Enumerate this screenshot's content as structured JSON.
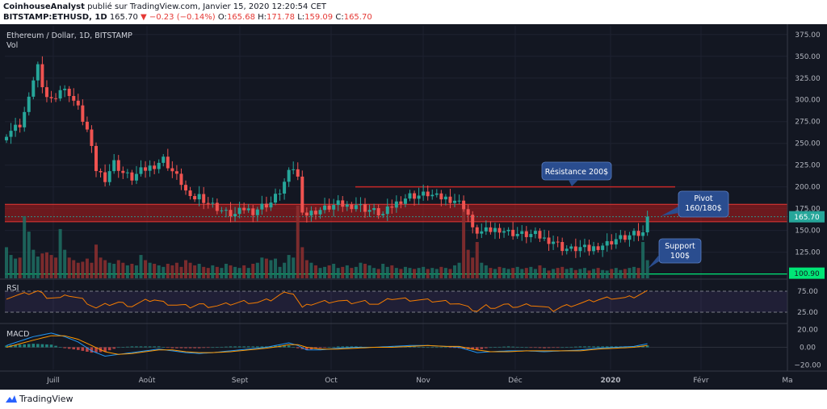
{
  "header": {
    "author": "CoinhouseAnalyst",
    "published": "publié sur TradingView.com, Janvier 15, 2020 12:20:54 CET",
    "symbol": "BITSTAMP:ETHUSD, 1D",
    "last": "165.70",
    "change": "−0.23 (−0.14%)",
    "o_label": "O:",
    "o": "165.68",
    "h_label": "H:",
    "h": "171.78",
    "l_label": "L:",
    "l": "159.09",
    "c_label": "C:",
    "c": "165.70"
  },
  "legend": {
    "title": "Ethereum / Dollar, 1D, BITSTAMP",
    "vol": "Vol",
    "rsi": "RSI",
    "macd": "MACD"
  },
  "annotations": {
    "resistance": "Résistance 200$",
    "pivot_line1": "Pivot",
    "pivot_line2": "160/180$",
    "support_line1": "Support",
    "support_line2": "100$"
  },
  "price_tags": {
    "last": "165.70",
    "support": "100.90"
  },
  "footer": {
    "brand": "TradingView"
  },
  "colors": {
    "up": "#26a69a",
    "down": "#ef5350",
    "rsi": "#f57c00",
    "macd_line": "#2196f3",
    "signal": "#ff9800",
    "support": "#00e676",
    "zone": "#b71c1c",
    "pivot_box": "#2a4d8f"
  },
  "chart_data": {
    "type": "candlestick",
    "x_labels": [
      "Juill",
      "Août",
      "Sept",
      "Oct",
      "Nov",
      "Déc",
      "2020",
      "Févr",
      "Ma"
    ],
    "y_ticks": [
      100,
      125,
      150,
      175,
      200,
      225,
      250,
      275,
      300,
      325,
      350,
      375
    ],
    "ylim": [
      95,
      385
    ],
    "rsi_ticks": [
      "75.00",
      "25.00"
    ],
    "macd_ticks": [
      "20.00",
      "0.00",
      "−20.00"
    ],
    "resistance_level": 200,
    "pivot_zone": [
      160,
      180
    ],
    "support_level": 100,
    "close_path": [
      [
        0,
        262
      ],
      [
        3,
        272
      ],
      [
        5,
        300
      ],
      [
        6,
        325
      ],
      [
        7,
        340
      ],
      [
        8,
        310
      ],
      [
        10,
        300
      ],
      [
        12,
        312
      ],
      [
        14,
        308
      ],
      [
        16,
        290
      ],
      [
        18,
        265
      ],
      [
        20,
        220
      ],
      [
        22,
        210
      ],
      [
        24,
        228
      ],
      [
        26,
        216
      ],
      [
        28,
        210
      ],
      [
        30,
        218
      ],
      [
        33,
        225
      ],
      [
        35,
        232
      ],
      [
        37,
        218
      ],
      [
        39,
        205
      ],
      [
        41,
        185
      ],
      [
        43,
        190
      ],
      [
        45,
        182
      ],
      [
        47,
        176
      ],
      [
        49,
        170
      ],
      [
        51,
        168
      ],
      [
        53,
        175
      ],
      [
        55,
        172
      ],
      [
        57,
        178
      ],
      [
        59,
        182
      ],
      [
        61,
        195
      ],
      [
        63,
        215
      ],
      [
        64,
        222
      ],
      [
        65,
        210
      ],
      [
        66,
        175
      ],
      [
        67,
        168
      ],
      [
        69,
        172
      ],
      [
        71,
        175
      ],
      [
        74,
        180
      ],
      [
        76,
        178
      ],
      [
        78,
        180
      ],
      [
        80,
        175
      ],
      [
        82,
        172
      ],
      [
        84,
        168
      ],
      [
        86,
        178
      ],
      [
        88,
        185
      ],
      [
        90,
        190
      ],
      [
        92,
        190
      ],
      [
        94,
        192
      ],
      [
        96,
        188
      ],
      [
        98,
        187
      ],
      [
        100,
        185
      ],
      [
        102,
        178
      ],
      [
        103,
        168
      ],
      [
        104,
        150
      ],
      [
        106,
        148
      ],
      [
        108,
        150
      ],
      [
        110,
        152
      ],
      [
        112,
        148
      ],
      [
        114,
        146
      ],
      [
        116,
        145
      ],
      [
        118,
        145
      ],
      [
        120,
        140
      ],
      [
        122,
        138
      ],
      [
        124,
        130
      ],
      [
        126,
        128
      ],
      [
        128,
        130
      ],
      [
        130,
        128
      ],
      [
        132,
        132
      ],
      [
        134,
        135
      ],
      [
        136,
        140
      ],
      [
        138,
        142
      ],
      [
        140,
        145
      ],
      [
        142,
        146
      ],
      [
        143,
        165
      ]
    ],
    "volume": [
      60,
      45,
      38,
      40,
      120,
      90,
      55,
      42,
      48,
      50,
      45,
      40,
      95,
      55,
      40,
      35,
      30,
      32,
      38,
      30,
      65,
      40,
      35,
      30,
      28,
      35,
      30,
      25,
      28,
      25,
      45,
      35,
      30,
      28,
      25,
      22,
      28,
      25,
      30,
      22,
      35,
      30,
      25,
      28,
      22,
      20,
      25,
      22,
      20,
      28,
      25,
      22,
      20,
      25,
      20,
      28,
      30,
      40,
      38,
      35,
      38,
      22,
      30,
      45,
      40,
      140,
      60,
      35,
      30,
      25,
      20,
      22,
      25,
      28,
      20,
      22,
      25,
      20,
      22,
      30,
      28,
      25,
      20,
      18,
      28,
      22,
      25,
      20,
      18,
      22,
      20,
      18,
      20,
      22,
      18,
      20,
      18,
      22,
      20,
      18,
      25,
      30,
      140,
      55,
      40,
      70,
      30,
      25,
      20,
      18,
      22,
      20,
      18,
      20,
      22,
      18,
      20,
      22,
      18,
      25,
      20,
      15,
      18,
      20,
      22,
      18,
      20,
      16,
      18,
      20,
      15,
      18,
      20,
      16,
      15,
      18,
      20,
      16,
      18,
      20,
      22,
      20,
      70,
      35
    ],
    "rsi": [
      [
        0,
        60
      ],
      [
        4,
        68
      ],
      [
        7,
        75
      ],
      [
        9,
        62
      ],
      [
        12,
        58
      ],
      [
        14,
        66
      ],
      [
        17,
        55
      ],
      [
        20,
        35
      ],
      [
        22,
        42
      ],
      [
        25,
        48
      ],
      [
        28,
        40
      ],
      [
        31,
        52
      ],
      [
        33,
        55
      ],
      [
        35,
        48
      ],
      [
        38,
        42
      ],
      [
        41,
        38
      ],
      [
        43,
        44
      ],
      [
        45,
        40
      ],
      [
        47,
        40
      ],
      [
        50,
        45
      ],
      [
        53,
        50
      ],
      [
        56,
        48
      ],
      [
        59,
        55
      ],
      [
        61,
        66
      ],
      [
        63,
        74
      ],
      [
        64,
        70
      ],
      [
        66,
        35
      ],
      [
        68,
        45
      ],
      [
        71,
        50
      ],
      [
        74,
        52
      ],
      [
        77,
        48
      ],
      [
        80,
        50
      ],
      [
        83,
        44
      ],
      [
        86,
        58
      ],
      [
        89,
        56
      ],
      [
        92,
        54
      ],
      [
        95,
        52
      ],
      [
        98,
        50
      ],
      [
        101,
        45
      ],
      [
        103,
        35
      ],
      [
        105,
        28
      ],
      [
        107,
        40
      ],
      [
        109,
        36
      ],
      [
        111,
        42
      ],
      [
        114,
        38
      ],
      [
        117,
        44
      ],
      [
        120,
        36
      ],
      [
        122,
        30
      ],
      [
        124,
        38
      ],
      [
        126,
        42
      ],
      [
        129,
        48
      ],
      [
        132,
        55
      ],
      [
        135,
        60
      ],
      [
        138,
        58
      ],
      [
        140,
        62
      ],
      [
        142,
        70
      ],
      [
        143,
        74
      ]
    ],
    "macd": [
      [
        0,
        2
      ],
      [
        6,
        12
      ],
      [
        10,
        16
      ],
      [
        13,
        12
      ],
      [
        16,
        6
      ],
      [
        19,
        -4
      ],
      [
        22,
        -10
      ],
      [
        25,
        -8
      ],
      [
        28,
        -6
      ],
      [
        31,
        -4
      ],
      [
        34,
        -2
      ],
      [
        37,
        -4
      ],
      [
        40,
        -6
      ],
      [
        43,
        -7
      ],
      [
        46,
        -6
      ],
      [
        50,
        -4
      ],
      [
        54,
        -2
      ],
      [
        58,
        0
      ],
      [
        61,
        3
      ],
      [
        63,
        5
      ],
      [
        65,
        2
      ],
      [
        67,
        -3
      ],
      [
        70,
        -3
      ],
      [
        74,
        -1
      ],
      [
        78,
        0
      ],
      [
        82,
        0
      ],
      [
        86,
        1
      ],
      [
        90,
        2
      ],
      [
        94,
        2
      ],
      [
        98,
        1
      ],
      [
        101,
        0
      ],
      [
        103,
        -3
      ],
      [
        105,
        -6
      ],
      [
        108,
        -5
      ],
      [
        112,
        -4
      ],
      [
        116,
        -4
      ],
      [
        120,
        -5
      ],
      [
        124,
        -4
      ],
      [
        128,
        -3
      ],
      [
        132,
        -1
      ],
      [
        136,
        0
      ],
      [
        140,
        1
      ],
      [
        143,
        4
      ]
    ],
    "signal": [
      [
        0,
        0
      ],
      [
        6,
        8
      ],
      [
        10,
        13
      ],
      [
        13,
        13
      ],
      [
        16,
        9
      ],
      [
        19,
        2
      ],
      [
        22,
        -5
      ],
      [
        25,
        -8
      ],
      [
        28,
        -7
      ],
      [
        31,
        -5
      ],
      [
        34,
        -3
      ],
      [
        37,
        -3
      ],
      [
        40,
        -5
      ],
      [
        43,
        -6
      ],
      [
        46,
        -6
      ],
      [
        50,
        -5
      ],
      [
        54,
        -3
      ],
      [
        58,
        -1
      ],
      [
        61,
        1
      ],
      [
        63,
        3
      ],
      [
        65,
        3
      ],
      [
        67,
        0
      ],
      [
        70,
        -2
      ],
      [
        74,
        -2
      ],
      [
        78,
        -1
      ],
      [
        82,
        0
      ],
      [
        86,
        0
      ],
      [
        90,
        1
      ],
      [
        94,
        2
      ],
      [
        98,
        1
      ],
      [
        101,
        1
      ],
      [
        103,
        -1
      ],
      [
        105,
        -3
      ],
      [
        108,
        -5
      ],
      [
        112,
        -5
      ],
      [
        116,
        -4
      ],
      [
        120,
        -4
      ],
      [
        124,
        -4
      ],
      [
        128,
        -4
      ],
      [
        132,
        -2
      ],
      [
        136,
        -1
      ],
      [
        140,
        0
      ],
      [
        143,
        2
      ]
    ]
  }
}
